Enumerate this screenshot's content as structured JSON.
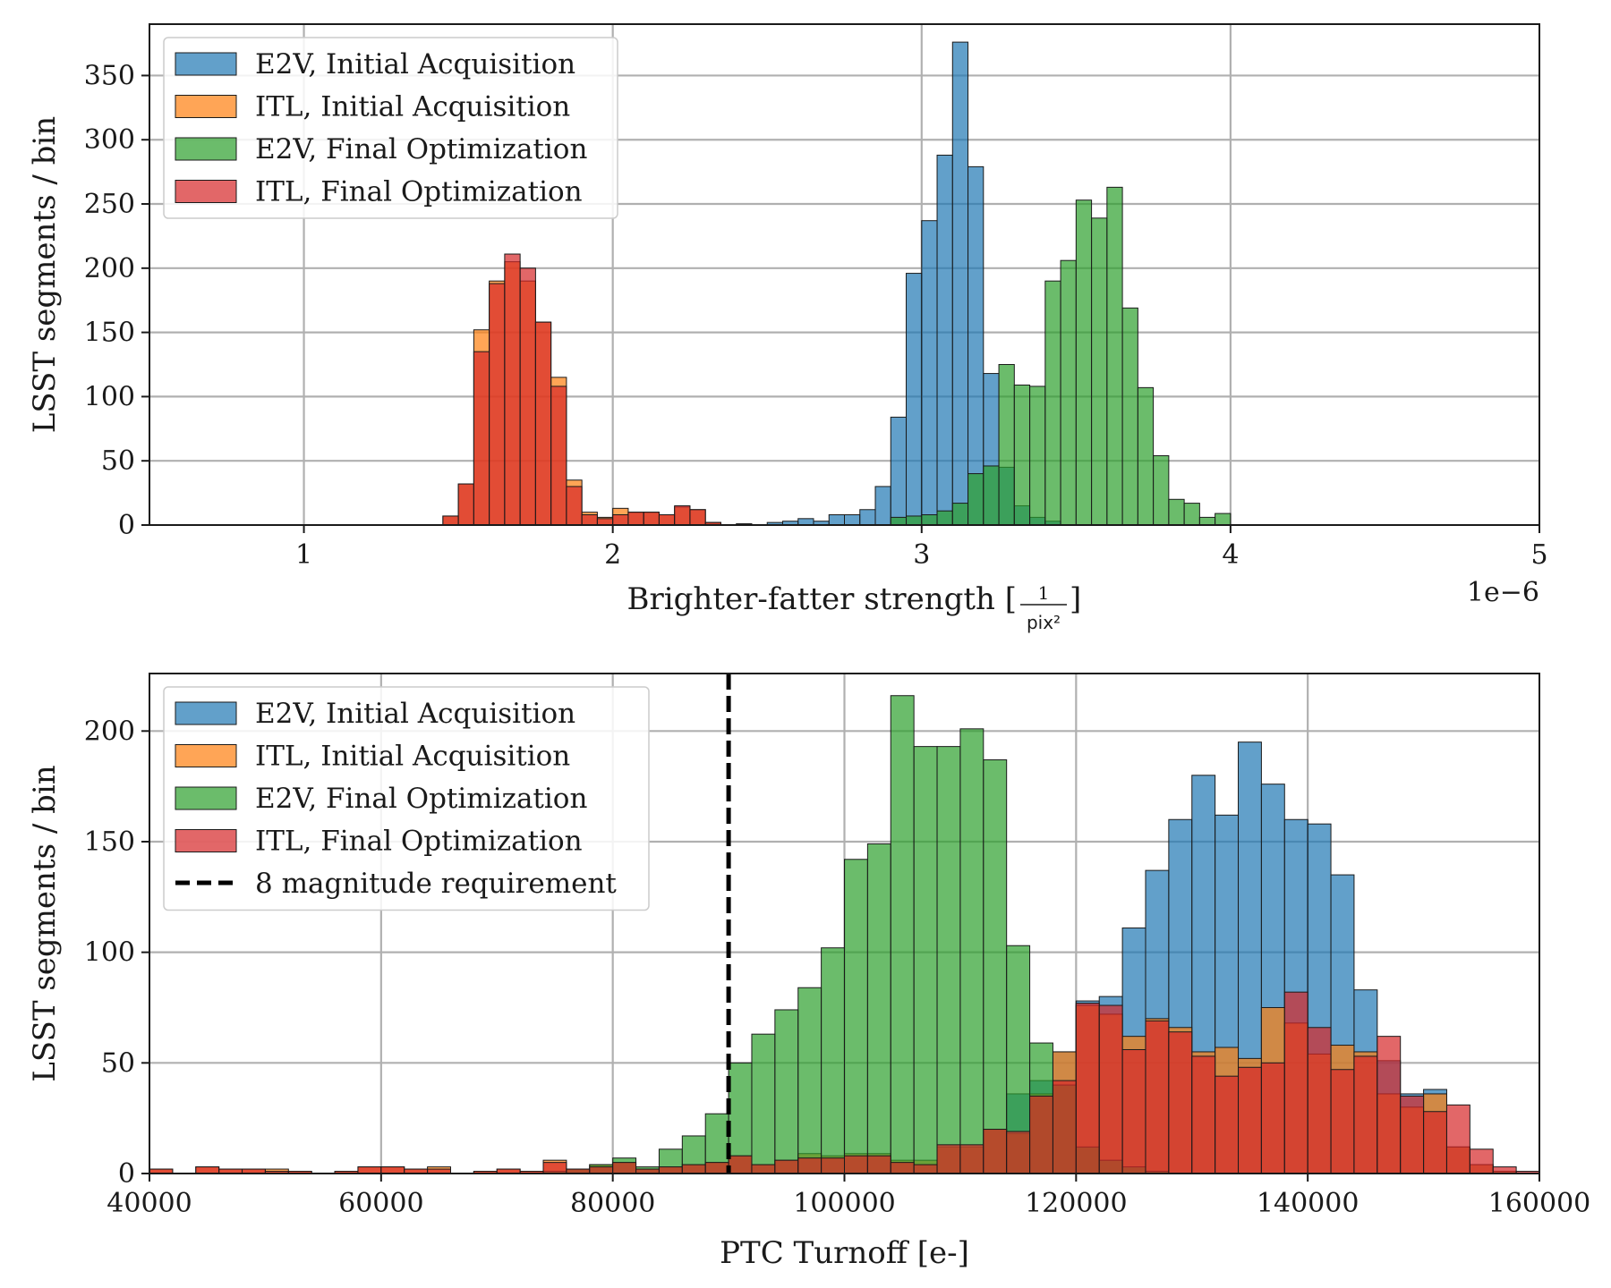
{
  "chart_data": [
    {
      "type": "histogram",
      "xlabel": "Brighter-fatter strength",
      "xlabel_unit_numerator": "1",
      "xlabel_unit_denominator": "pix²",
      "ylabel": "LSST segments / bin",
      "offset_text": "1e−6",
      "xlim": [
        0.5,
        5.0
      ],
      "ylim": [
        0,
        390
      ],
      "xticks": [
        1,
        2,
        3,
        4,
        5
      ],
      "yticks": [
        0,
        50,
        100,
        150,
        200,
        250,
        300,
        350
      ],
      "bin_width": 0.05,
      "grid": true,
      "legend_position": "upper-left",
      "series": [
        {
          "name": "E2V, Initial Acquisition",
          "color": "#1f77b4",
          "bins": [
            [
              2.3,
              2
            ],
            [
              2.4,
              1
            ],
            [
              2.5,
              2
            ],
            [
              2.55,
              3
            ],
            [
              2.6,
              5
            ],
            [
              2.65,
              3
            ],
            [
              2.7,
              8
            ],
            [
              2.75,
              8
            ],
            [
              2.8,
              12
            ],
            [
              2.85,
              30
            ],
            [
              2.9,
              84
            ],
            [
              2.95,
              196
            ],
            [
              3.0,
              237
            ],
            [
              3.05,
              288
            ],
            [
              3.1,
              376
            ],
            [
              3.15,
              279
            ],
            [
              3.2,
              118
            ],
            [
              3.25,
              45
            ],
            [
              3.3,
              15
            ],
            [
              3.35,
              6
            ],
            [
              3.4,
              3
            ]
          ]
        },
        {
          "name": "ITL, Initial Acquisition",
          "color": "#ff7f0e",
          "bins": [
            [
              1.45,
              7
            ],
            [
              1.5,
              32
            ],
            [
              1.55,
              152
            ],
            [
              1.6,
              190
            ],
            [
              1.65,
              205
            ],
            [
              1.7,
              190
            ],
            [
              1.75,
              158
            ],
            [
              1.8,
              115
            ],
            [
              1.85,
              35
            ],
            [
              1.9,
              10
            ],
            [
              1.95,
              6
            ],
            [
              2.0,
              13
            ],
            [
              2.05,
              10
            ],
            [
              2.1,
              10
            ],
            [
              2.15,
              8
            ],
            [
              2.2,
              14
            ],
            [
              2.25,
              12
            ],
            [
              2.3,
              2
            ]
          ]
        },
        {
          "name": "E2V, Final Optimization",
          "color": "#2ca02c",
          "bins": [
            [
              2.9,
              6
            ],
            [
              2.95,
              7
            ],
            [
              3.0,
              8
            ],
            [
              3.05,
              11
            ],
            [
              3.1,
              17
            ],
            [
              3.15,
              40
            ],
            [
              3.2,
              46
            ],
            [
              3.25,
              125
            ],
            [
              3.3,
              109
            ],
            [
              3.35,
              108
            ],
            [
              3.4,
              190
            ],
            [
              3.45,
              206
            ],
            [
              3.5,
              253
            ],
            [
              3.55,
              239
            ],
            [
              3.6,
              263
            ],
            [
              3.65,
              169
            ],
            [
              3.7,
              107
            ],
            [
              3.75,
              54
            ],
            [
              3.8,
              20
            ],
            [
              3.85,
              17
            ],
            [
              3.9,
              6
            ],
            [
              3.95,
              9
            ]
          ]
        },
        {
          "name": "ITL, Final Optimization",
          "color": "#d62728",
          "bins": [
            [
              1.45,
              7
            ],
            [
              1.5,
              32
            ],
            [
              1.55,
              135
            ],
            [
              1.6,
              188
            ],
            [
              1.65,
              211
            ],
            [
              1.7,
              200
            ],
            [
              1.75,
              158
            ],
            [
              1.8,
              108
            ],
            [
              1.85,
              30
            ],
            [
              1.9,
              8
            ],
            [
              1.95,
              5
            ],
            [
              2.0,
              8
            ],
            [
              2.05,
              10
            ],
            [
              2.1,
              10
            ],
            [
              2.15,
              8
            ],
            [
              2.2,
              15
            ],
            [
              2.25,
              12
            ],
            [
              2.3,
              2
            ]
          ]
        }
      ]
    },
    {
      "type": "histogram",
      "xlabel": "PTC Turnoff [e-]",
      "ylabel": "LSST segments / bin",
      "xlim": [
        40000,
        160000
      ],
      "ylim": [
        0,
        226
      ],
      "xticks": [
        40000,
        60000,
        80000,
        100000,
        120000,
        140000,
        160000
      ],
      "yticks": [
        0,
        50,
        100,
        150,
        200
      ],
      "bin_width": 2000,
      "grid": true,
      "legend_position": "upper-left",
      "reference_line": {
        "name": "8 magnitude requirement",
        "x": 90000,
        "style": "dashed",
        "color": "#000000"
      },
      "series": [
        {
          "name": "E2V, Initial Acquisition",
          "color": "#1f77b4",
          "bins": [
            [
              114000,
              36
            ],
            [
              116000,
              42
            ],
            [
              118000,
              55
            ],
            [
              120000,
              78
            ],
            [
              122000,
              80
            ],
            [
              124000,
              111
            ],
            [
              126000,
              137
            ],
            [
              128000,
              160
            ],
            [
              130000,
              180
            ],
            [
              132000,
              162
            ],
            [
              134000,
              195
            ],
            [
              136000,
              176
            ],
            [
              138000,
              160
            ],
            [
              140000,
              158
            ],
            [
              142000,
              135
            ],
            [
              144000,
              83
            ],
            [
              146000,
              51
            ],
            [
              148000,
              36
            ],
            [
              150000,
              38
            ],
            [
              152000,
              12
            ],
            [
              154000,
              4
            ],
            [
              156000,
              1
            ]
          ]
        },
        {
          "name": "ITL, Initial Acquisition",
          "color": "#ff7f0e",
          "bins": [
            [
              40000,
              2
            ],
            [
              44000,
              3
            ],
            [
              46000,
              2
            ],
            [
              48000,
              2
            ],
            [
              50000,
              2
            ],
            [
              52000,
              1
            ],
            [
              56000,
              1
            ],
            [
              58000,
              3
            ],
            [
              60000,
              3
            ],
            [
              62000,
              2
            ],
            [
              64000,
              3
            ],
            [
              68000,
              1
            ],
            [
              70000,
              2
            ],
            [
              72000,
              1
            ],
            [
              74000,
              6
            ],
            [
              76000,
              2
            ],
            [
              78000,
              4
            ],
            [
              80000,
              5
            ],
            [
              82000,
              2
            ],
            [
              84000,
              3
            ],
            [
              86000,
              4
            ],
            [
              88000,
              5
            ],
            [
              90000,
              8
            ],
            [
              92000,
              4
            ],
            [
              94000,
              6
            ],
            [
              96000,
              9
            ],
            [
              98000,
              8
            ],
            [
              100000,
              9
            ],
            [
              102000,
              9
            ],
            [
              104000,
              6
            ],
            [
              106000,
              6
            ],
            [
              108000,
              12
            ],
            [
              110000,
              12
            ],
            [
              112000,
              20
            ],
            [
              114000,
              18
            ],
            [
              116000,
              36
            ],
            [
              118000,
              55
            ],
            [
              120000,
              76
            ],
            [
              122000,
              72
            ],
            [
              124000,
              62
            ],
            [
              126000,
              70
            ],
            [
              128000,
              66
            ],
            [
              130000,
              55
            ],
            [
              132000,
              57
            ],
            [
              134000,
              52
            ],
            [
              136000,
              75
            ],
            [
              138000,
              68
            ],
            [
              140000,
              54
            ],
            [
              142000,
              58
            ],
            [
              144000,
              55
            ],
            [
              146000,
              36
            ],
            [
              148000,
              30
            ],
            [
              150000,
              36
            ],
            [
              152000,
              12
            ],
            [
              154000,
              4
            ],
            [
              156000,
              1
            ]
          ]
        },
        {
          "name": "E2V, Final Optimization",
          "color": "#2ca02c",
          "bins": [
            [
              74000,
              1
            ],
            [
              76000,
              2
            ],
            [
              78000,
              4
            ],
            [
              80000,
              7
            ],
            [
              82000,
              3
            ],
            [
              84000,
              11
            ],
            [
              86000,
              17
            ],
            [
              88000,
              27
            ],
            [
              90000,
              50
            ],
            [
              92000,
              63
            ],
            [
              94000,
              74
            ],
            [
              96000,
              84
            ],
            [
              98000,
              102
            ],
            [
              100000,
              142
            ],
            [
              102000,
              149
            ],
            [
              104000,
              216
            ],
            [
              106000,
              193
            ],
            [
              108000,
              193
            ],
            [
              110000,
              201
            ],
            [
              112000,
              187
            ],
            [
              114000,
              103
            ],
            [
              116000,
              59
            ],
            [
              118000,
              40
            ],
            [
              120000,
              12
            ],
            [
              122000,
              6
            ],
            [
              124000,
              3
            ],
            [
              126000,
              1
            ]
          ]
        },
        {
          "name": "ITL, Final Optimization",
          "color": "#d62728",
          "bins": [
            [
              40000,
              2
            ],
            [
              44000,
              3
            ],
            [
              46000,
              2
            ],
            [
              48000,
              2
            ],
            [
              50000,
              1
            ],
            [
              52000,
              1
            ],
            [
              56000,
              1
            ],
            [
              58000,
              3
            ],
            [
              60000,
              3
            ],
            [
              62000,
              2
            ],
            [
              64000,
              2
            ],
            [
              68000,
              1
            ],
            [
              70000,
              2
            ],
            [
              72000,
              1
            ],
            [
              74000,
              5
            ],
            [
              76000,
              2
            ],
            [
              78000,
              3
            ],
            [
              80000,
              5
            ],
            [
              82000,
              2
            ],
            [
              84000,
              3
            ],
            [
              86000,
              4
            ],
            [
              88000,
              5
            ],
            [
              90000,
              8
            ],
            [
              92000,
              4
            ],
            [
              94000,
              6
            ],
            [
              96000,
              7
            ],
            [
              98000,
              7
            ],
            [
              100000,
              8
            ],
            [
              102000,
              8
            ],
            [
              104000,
              5
            ],
            [
              106000,
              4
            ],
            [
              108000,
              13
            ],
            [
              110000,
              13
            ],
            [
              112000,
              20
            ],
            [
              114000,
              19
            ],
            [
              116000,
              35
            ],
            [
              118000,
              42
            ],
            [
              120000,
              77
            ],
            [
              122000,
              76
            ],
            [
              124000,
              56
            ],
            [
              126000,
              69
            ],
            [
              128000,
              64
            ],
            [
              130000,
              53
            ],
            [
              132000,
              44
            ],
            [
              134000,
              48
            ],
            [
              136000,
              50
            ],
            [
              138000,
              82
            ],
            [
              140000,
              66
            ],
            [
              142000,
              47
            ],
            [
              144000,
              53
            ],
            [
              146000,
              62
            ],
            [
              148000,
              35
            ],
            [
              150000,
              28
            ],
            [
              152000,
              31
            ],
            [
              154000,
              11
            ],
            [
              156000,
              3
            ],
            [
              158000,
              1
            ]
          ]
        }
      ]
    }
  ]
}
